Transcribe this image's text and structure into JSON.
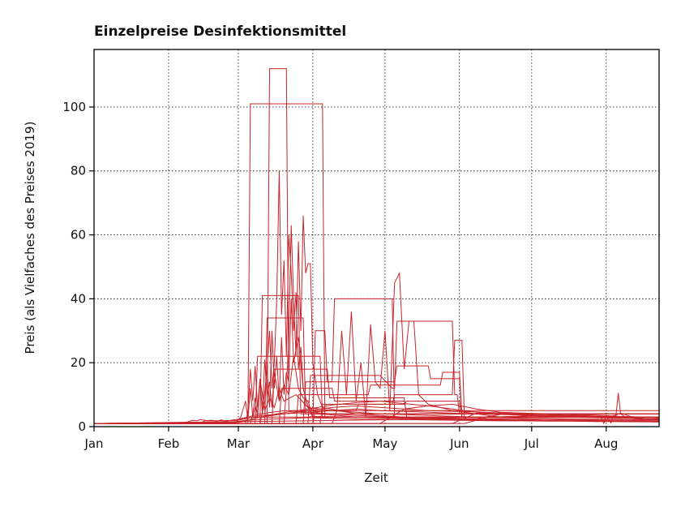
{
  "chart_data": {
    "type": "line",
    "title": "Einzelpreise Desinfektionsmittel",
    "xlabel": "Zeit",
    "ylabel": "Preis (als Vielfaches des Preises 2019)",
    "x_tick_labels": [
      "Jan",
      "Feb",
      "Mar",
      "Apr",
      "May",
      "Jun",
      "Jul",
      "Aug"
    ],
    "x_tick_days": [
      1,
      32,
      61,
      92,
      122,
      153,
      183,
      214
    ],
    "xlim_days": [
      1,
      236
    ],
    "y_ticks": [
      0,
      20,
      40,
      60,
      80,
      100
    ],
    "ylim": [
      0,
      118
    ],
    "grid": true,
    "legend": "none",
    "line_color": "#c8242b",
    "series": [
      {
        "x": [
          1,
          38,
          40,
          42,
          44,
          45,
          46,
          48,
          50,
          52,
          54,
          55,
          56,
          57,
          58,
          60,
          62,
          64,
          68,
          90,
          92,
          110,
          130,
          150,
          170,
          180,
          190,
          205,
          220,
          236
        ],
        "values": [
          1,
          1.2,
          1.5,
          2.0,
          1.8,
          2.2,
          2.1,
          1.9,
          2.0,
          1.7,
          2.1,
          1.8,
          1.6,
          1.9,
          2.0,
          2.2,
          2.4,
          2.6,
          3,
          3,
          3.2,
          3.0,
          2.8,
          2.6,
          2.4,
          2.2,
          2.0,
          1.9,
          1.8,
          1.7
        ]
      },
      {
        "x": [
          1,
          60,
          62,
          64,
          65,
          66,
          67,
          68,
          69,
          70,
          72,
          74,
          76,
          78,
          80,
          85,
          90,
          100,
          120,
          140,
          160,
          180,
          200,
          220,
          236
        ],
        "values": [
          1,
          1.1,
          3,
          8,
          2,
          12,
          3,
          6,
          4,
          15,
          5,
          9,
          6,
          12,
          8,
          10,
          6,
          5,
          4,
          3.5,
          3,
          2.6,
          2.4,
          2.2,
          2.0
        ]
      },
      {
        "x": [
          1,
          64,
          65,
          66,
          67,
          68,
          69,
          70,
          71,
          72,
          73,
          74,
          75,
          76,
          78,
          80,
          82,
          84,
          86,
          88,
          90,
          92,
          110,
          130,
          150,
          170,
          190,
          210,
          236
        ],
        "values": [
          1,
          1,
          5,
          18,
          8,
          19,
          6,
          15,
          4,
          21,
          9,
          14,
          6,
          17,
          8,
          13,
          10,
          22,
          12,
          9,
          8,
          3,
          3,
          2.5,
          2.2,
          2,
          1.9,
          1.8,
          1.6
        ]
      },
      {
        "x": [
          1,
          66,
          67,
          68,
          69,
          70,
          71,
          72,
          73,
          74,
          75,
          76,
          77,
          78,
          79,
          80,
          81,
          82,
          83,
          84,
          86,
          88,
          90,
          95,
          110,
          130,
          150,
          170,
          190,
          210,
          236
        ],
        "values": [
          1,
          1,
          4,
          9,
          3,
          14,
          6,
          11,
          18,
          6,
          30,
          12,
          22,
          8,
          28,
          10,
          17,
          14,
          40,
          20,
          28,
          12,
          6,
          4,
          3,
          2.6,
          2.3,
          2,
          1.8,
          1.7,
          1.5
        ]
      },
      {
        "x": [
          1,
          70,
          72,
          74,
          75,
          76,
          77,
          78,
          79,
          80,
          81,
          82,
          83,
          84,
          85,
          86,
          87,
          88,
          90,
          92,
          110,
          130,
          150,
          170,
          190,
          210,
          236
        ],
        "values": [
          1,
          1,
          8,
          30,
          12,
          20,
          40,
          80,
          35,
          52,
          22,
          60,
          48,
          30,
          42,
          18,
          25,
          12,
          6,
          3,
          3,
          2.6,
          2.3,
          2,
          1.8,
          1.7,
          1.5
        ]
      },
      {
        "x": [
          1,
          80,
          81,
          82,
          83,
          84,
          85,
          86,
          87,
          88,
          89,
          90,
          91,
          92,
          94,
          96,
          110,
          130,
          150,
          170,
          190,
          210,
          236
        ],
        "values": [
          1,
          1,
          12,
          28,
          63,
          40,
          22,
          58,
          30,
          66,
          48,
          51,
          51,
          20,
          10,
          6,
          4,
          3,
          2.6,
          2.3,
          2,
          1.8,
          1.6
        ]
      },
      {
        "x": [
          1,
          65,
          66,
          96,
          97,
          236
        ],
        "values": [
          1,
          1,
          101,
          101,
          3,
          3
        ]
      },
      {
        "x": [
          1,
          73,
          74,
          81,
          82,
          236
        ],
        "values": [
          1,
          1,
          112,
          112,
          5,
          5
        ]
      },
      {
        "x": [
          1,
          70,
          71,
          86,
          87,
          236
        ],
        "values": [
          1,
          1,
          41,
          41,
          4,
          4
        ]
      },
      {
        "x": [
          1,
          68,
          69,
          95,
          96,
          236
        ],
        "values": [
          1,
          1,
          22,
          22,
          3,
          3
        ]
      },
      {
        "x": [
          1,
          72,
          73,
          88,
          89,
          236
        ],
        "values": [
          1,
          1,
          34,
          34,
          4,
          4
        ]
      },
      {
        "x": [
          1,
          92,
          93,
          97,
          98,
          100,
          101,
          125,
          126,
          236
        ],
        "values": [
          1,
          1,
          30,
          30,
          14,
          14,
          40,
          40,
          3,
          3
        ]
      },
      {
        "x": [
          1,
          100,
          102,
          104,
          106,
          108,
          110,
          112,
          114,
          116,
          118,
          120,
          122,
          124,
          126,
          128,
          130,
          132,
          134,
          136,
          140,
          150,
          160,
          170,
          180,
          200,
          236
        ],
        "values": [
          1,
          1,
          5,
          30,
          10,
          36,
          8,
          20,
          3,
          32,
          14,
          12,
          30,
          5,
          45,
          48,
          18,
          33,
          33,
          10,
          7,
          5,
          4,
          3,
          2.5,
          2.2,
          2
        ]
      },
      {
        "x": [
          1,
          90,
          91,
          120,
          125,
          126,
          127,
          150,
          151,
          152,
          153,
          236
        ],
        "values": [
          1,
          1,
          16,
          16,
          12,
          12,
          33,
          33,
          10,
          10,
          4,
          4
        ]
      },
      {
        "x": [
          1,
          88,
          89,
          126,
          127,
          140,
          141,
          153,
          154,
          236
        ],
        "values": [
          1,
          1,
          14,
          14,
          19,
          19,
          15,
          15,
          3,
          3
        ]
      },
      {
        "x": [
          1,
          85,
          86,
          115,
          116,
          145,
          146,
          153,
          154,
          236
        ],
        "values": [
          1,
          1,
          10,
          10,
          13,
          13,
          17,
          17,
          3,
          3
        ]
      },
      {
        "x": [
          1,
          95,
          96,
          125,
          126,
          150,
          151,
          154,
          155,
          236
        ],
        "values": [
          1,
          1,
          7,
          7,
          10,
          10,
          27,
          27,
          3,
          3
        ]
      },
      {
        "x": [
          1,
          60,
          62,
          65,
          70,
          80,
          90,
          100,
          110,
          120,
          130,
          140,
          150,
          160,
          170,
          180,
          190,
          200,
          210,
          220,
          225,
          230,
          236
        ],
        "values": [
          1,
          1.5,
          2.5,
          3,
          4,
          5,
          4.5,
          5,
          5.5,
          5,
          4.8,
          4.5,
          4.2,
          4,
          3.8,
          3.6,
          3.4,
          3.2,
          3.0,
          2.8,
          2.7,
          2.6,
          2.5
        ]
      },
      {
        "x": [
          1,
          60,
          65,
          70,
          80,
          90,
          100,
          110,
          120,
          130,
          140,
          150,
          160,
          170,
          180,
          190,
          200,
          210,
          220,
          236
        ],
        "values": [
          1,
          1.3,
          2,
          3,
          4,
          5,
          6,
          6.5,
          6,
          5.5,
          5,
          4.8,
          4.6,
          4.3,
          4,
          3.8,
          3.5,
          3.3,
          3.1,
          3.0
        ]
      },
      {
        "x": [
          1,
          62,
          66,
          72,
          80,
          90,
          100,
          110,
          120,
          130,
          140,
          150,
          160,
          170,
          180,
          190,
          200,
          210,
          220,
          236
        ],
        "values": [
          1,
          1.4,
          2.2,
          3.3,
          4.4,
          5.5,
          6.8,
          7.5,
          8,
          7.2,
          6.5,
          5.5,
          4.5,
          4,
          3.5,
          3.2,
          3,
          2.8,
          2.6,
          2.5
        ]
      },
      {
        "x": [
          1,
          30,
          31,
          60,
          62,
          70,
          80,
          90,
          100,
          110,
          120,
          130,
          140,
          150,
          160,
          170,
          180,
          190,
          200,
          210,
          220,
          230,
          236
        ],
        "values": [
          1,
          1,
          1.3,
          1.4,
          1.8,
          2.2,
          2.5,
          2.8,
          2.6,
          2.4,
          2.3,
          2.2,
          2.1,
          2.0,
          1.9,
          1.8,
          1.8,
          1.7,
          1.7,
          1.6,
          1.6,
          1.5,
          1.5
        ]
      },
      {
        "x": [
          1,
          45,
          47,
          60,
          64,
          70,
          80,
          90,
          100,
          110,
          120,
          130,
          140,
          150,
          160,
          170,
          180,
          190,
          200,
          210,
          220,
          236
        ],
        "values": [
          1,
          1,
          1.8,
          1.9,
          2.5,
          3.5,
          4,
          4.5,
          4,
          3.5,
          3.2,
          3,
          2.8,
          2.6,
          2.4,
          2.2,
          2.1,
          2.0,
          1.9,
          1.8,
          1.7,
          1.6
        ]
      },
      {
        "x": [
          1,
          150,
          160,
          170,
          180,
          190,
          200,
          210,
          215,
          220,
          225,
          230,
          236
        ],
        "values": [
          1,
          1,
          4.2,
          4,
          3.8,
          3.5,
          3.3,
          3.0,
          2.8,
          4.2,
          3,
          2.5,
          2.2
        ]
      },
      {
        "x": [
          1,
          155,
          165,
          175,
          185,
          195,
          205,
          210,
          212,
          213,
          214,
          215,
          216,
          217,
          218,
          219,
          220,
          222,
          225,
          230,
          236
        ],
        "values": [
          1,
          1,
          3,
          3.2,
          3.4,
          3.6,
          3.5,
          3.2,
          2.8,
          1,
          3.6,
          2,
          1.2,
          3.5,
          3,
          10.5,
          4,
          3,
          2.5,
          2.2,
          2
        ]
      },
      {
        "x": [
          1,
          160,
          170,
          180,
          190,
          200,
          210,
          220,
          230,
          236
        ],
        "values": [
          1,
          2.5,
          3.8,
          4.2,
          3.9,
          3.4,
          3.0,
          2.7,
          2.5,
          2.2
        ]
      },
      {
        "x": [
          1,
          120,
          130,
          140,
          150,
          160,
          170,
          180,
          190,
          200,
          210,
          220,
          230,
          236
        ],
        "values": [
          1,
          1,
          5.5,
          6.5,
          7,
          5.5,
          4.5,
          4.2,
          4,
          3.8,
          3.6,
          3.2,
          3.0,
          2.8
        ]
      },
      {
        "x": [
          1,
          92,
          93,
          110,
          111,
          130,
          131,
          153,
          154,
          236
        ],
        "values": [
          1,
          1,
          5,
          5,
          7,
          7,
          8,
          8,
          3,
          3
        ]
      },
      {
        "x": [
          1,
          78,
          79,
          100,
          101,
          130,
          131,
          236
        ],
        "values": [
          1,
          1,
          12,
          12,
          8,
          8,
          4,
          4
        ]
      },
      {
        "x": [
          1,
          75,
          76,
          98,
          99,
          130,
          131,
          236
        ],
        "values": [
          1,
          1,
          18,
          18,
          9,
          9,
          3,
          3
        ]
      }
    ]
  }
}
